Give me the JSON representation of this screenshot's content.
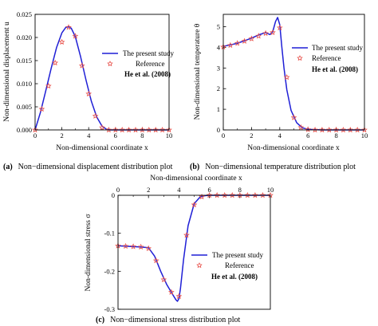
{
  "colors": {
    "line": "#1f1fd6",
    "marker": "#e8504a",
    "axis": "#000000"
  },
  "legend": {
    "line_label": "The present study",
    "marker_label": "Reference",
    "marker_source": "He et al. (2008)"
  },
  "chart_data": [
    {
      "type": "line",
      "caption_id": "(a)",
      "caption_text": "Non−dimensional displacement distribution plot",
      "xlabel": "Non-dimensional coordinate x",
      "ylabel": "Non-dimensional displacement u",
      "xlim": [
        0,
        10
      ],
      "ylim": [
        0,
        0.025
      ],
      "xticks": [
        0,
        2,
        4,
        6,
        8,
        10
      ],
      "xtick_labels": [
        "0",
        "2",
        "4",
        "6",
        "8",
        "10"
      ],
      "yticks": [
        0,
        0.005,
        0.01,
        0.015,
        0.02,
        0.025
      ],
      "ytick_labels": [
        "0.000",
        "0.005",
        "0.010",
        "0.015",
        "0.020",
        "0.025"
      ],
      "legend_position": "right",
      "series": [
        {
          "name": "The present study",
          "style": "line",
          "x": [
            0,
            0.4,
            0.8,
            1.2,
            1.6,
            2.0,
            2.3,
            2.5,
            2.7,
            3.0,
            3.4,
            3.8,
            4.2,
            4.6,
            5.0,
            5.3,
            5.6,
            6.0,
            7.0,
            8.0,
            9.0,
            10.0
          ],
          "y": [
            0,
            0.0038,
            0.0085,
            0.0133,
            0.0178,
            0.021,
            0.0222,
            0.0223,
            0.022,
            0.0202,
            0.0158,
            0.0108,
            0.0062,
            0.0028,
            0.0008,
            0.0002,
            0,
            0,
            0,
            0,
            0,
            0
          ]
        },
        {
          "name": "Reference",
          "style": "markers",
          "x": [
            0,
            0.5,
            1.0,
            1.5,
            2.0,
            2.5,
            3.0,
            3.5,
            4.0,
            4.5,
            5.0,
            5.5,
            6.0,
            6.5,
            7.0,
            7.5,
            8.0,
            8.5,
            9.0,
            9.5,
            10.0
          ],
          "y": [
            0,
            0.0045,
            0.0095,
            0.0145,
            0.019,
            0.0222,
            0.0203,
            0.0139,
            0.0078,
            0.003,
            0.0005,
            0,
            0,
            0,
            0,
            0,
            0,
            0,
            0,
            0,
            0
          ]
        }
      ]
    },
    {
      "type": "line",
      "caption_id": "(b)",
      "caption_text": "Non−dimensional temperature distribution plot",
      "xlabel": "Non-dimensional coordinate x",
      "ylabel": "Non-dimensional temperature θ",
      "xlim": [
        0,
        10
      ],
      "ylim": [
        0,
        5.6
      ],
      "xticks": [
        0,
        2,
        4,
        6,
        8,
        10
      ],
      "xtick_labels": [
        "0",
        "2",
        "4",
        "6",
        "8",
        "10"
      ],
      "yticks": [
        0,
        1,
        2,
        3,
        4,
        5
      ],
      "ytick_labels": [
        "0",
        "1",
        "2",
        "3",
        "4",
        "5"
      ],
      "legend_position": "top-right",
      "series": [
        {
          "name": "The present study",
          "style": "line",
          "x": [
            0,
            0.5,
            1.0,
            1.5,
            2.0,
            2.5,
            3.0,
            3.3,
            3.5,
            3.7,
            3.85,
            4.0,
            4.15,
            4.3,
            4.5,
            4.8,
            5.2,
            5.6,
            6.0,
            7.0,
            8.0,
            9.0,
            10.0
          ],
          "y": [
            4.05,
            4.12,
            4.2,
            4.32,
            4.45,
            4.6,
            4.72,
            4.62,
            4.75,
            5.25,
            5.45,
            5.1,
            4.0,
            3.0,
            1.95,
            0.95,
            0.35,
            0.1,
            0.03,
            0,
            0,
            0,
            0
          ]
        },
        {
          "name": "Reference",
          "style": "markers",
          "x": [
            0,
            0.5,
            1.0,
            1.5,
            2.0,
            2.5,
            3.0,
            3.5,
            4.0,
            4.5,
            5.0,
            5.5,
            6.0,
            6.5,
            7.0,
            7.5,
            8.0,
            8.5,
            9.0,
            9.5,
            10.0
          ],
          "y": [
            4.02,
            4.1,
            4.2,
            4.3,
            4.42,
            4.55,
            4.68,
            4.72,
            4.95,
            2.55,
            0.6,
            0.12,
            0.02,
            0,
            0,
            0,
            0,
            0,
            0,
            0,
            0
          ]
        }
      ]
    },
    {
      "type": "line",
      "caption_id": "(c)",
      "caption_text": "Non−dimensional stress distribution plot",
      "xlabel": "Non-dimensional coordinate x",
      "ylabel": "Non-dimensional stress σ",
      "xlim": [
        0,
        10
      ],
      "ylim": [
        -0.3,
        0
      ],
      "xaxis_position": "top",
      "xticks": [
        0,
        2,
        4,
        6,
        8,
        10
      ],
      "xtick_labels": [
        "0",
        "2",
        "4",
        "6",
        "8",
        "10"
      ],
      "yticks": [
        0,
        -0.1,
        -0.2,
        -0.3
      ],
      "ytick_labels": [
        "0",
        "-0.1",
        "-0.2",
        "-0.3"
      ],
      "legend_position": "bottom-right",
      "series": [
        {
          "name": "The present study",
          "style": "line",
          "x": [
            0,
            0.5,
            1.0,
            1.5,
            2.0,
            2.4,
            2.8,
            3.2,
            3.6,
            3.8,
            3.9,
            4.0,
            4.1,
            4.3,
            4.6,
            5.0,
            5.4,
            5.7,
            6.0,
            7.0,
            8.0,
            9.0,
            10.0
          ],
          "y": [
            -0.133,
            -0.134,
            -0.135,
            -0.136,
            -0.138,
            -0.16,
            -0.2,
            -0.235,
            -0.262,
            -0.275,
            -0.279,
            -0.272,
            -0.245,
            -0.17,
            -0.08,
            -0.022,
            -0.004,
            -0.001,
            0,
            0,
            0,
            0,
            0
          ]
        },
        {
          "name": "Reference",
          "style": "markers",
          "x": [
            0,
            0.5,
            1.0,
            1.5,
            2.0,
            2.5,
            3.0,
            3.5,
            4.0,
            4.5,
            5.0,
            5.5,
            6.0,
            6.5,
            7.0,
            7.5,
            8.0,
            8.5,
            9.0,
            9.5,
            10.0
          ],
          "y": [
            -0.133,
            -0.134,
            -0.135,
            -0.136,
            -0.14,
            -0.172,
            -0.222,
            -0.255,
            -0.266,
            -0.105,
            -0.025,
            -0.004,
            0,
            0,
            0,
            0,
            0,
            0,
            0,
            0,
            0
          ]
        }
      ]
    }
  ]
}
